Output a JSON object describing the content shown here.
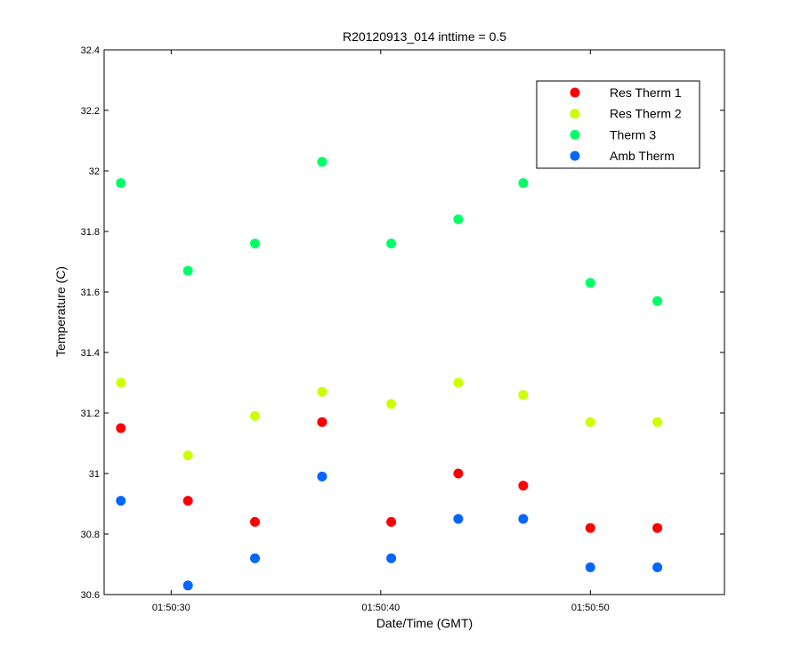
{
  "chart_data": {
    "type": "scatter",
    "title": "R20120913_014 inttime = 0.5",
    "xlabel": "Date/Time (GMT)",
    "ylabel": "Temperature (C)",
    "x_unit": "time (GMT)",
    "xlim": [
      "01:50:26.8",
      "01:50:56.4"
    ],
    "ylim": [
      30.6,
      32.4
    ],
    "x_ticks": [
      "01:50:30",
      "01:50:40",
      "01:50:50"
    ],
    "y_ticks": [
      "30.6",
      "30.8",
      "31",
      "31.2",
      "31.4",
      "31.6",
      "31.8",
      "32",
      "32.2",
      "32.4"
    ],
    "grid": false,
    "legend_position": "top-right",
    "x": [
      "01:50:27.6",
      "01:50:30.8",
      "01:50:34.0",
      "01:50:37.2",
      "01:50:40.5",
      "01:50:43.7",
      "01:50:46.8",
      "01:50:50.0",
      "01:50:53.2"
    ],
    "series": [
      {
        "name": "Res Therm 1",
        "color": "#ff0000",
        "values": [
          31.15,
          30.91,
          30.84,
          31.17,
          30.84,
          31.0,
          30.96,
          30.82,
          30.82
        ]
      },
      {
        "name": "Res Therm 2",
        "color": "#ccff00",
        "values": [
          31.3,
          31.06,
          31.19,
          31.27,
          31.23,
          31.3,
          31.26,
          31.17,
          31.17
        ]
      },
      {
        "name": "Therm 3",
        "color": "#00ff66",
        "values": [
          31.96,
          31.67,
          31.76,
          32.03,
          31.76,
          31.84,
          31.96,
          31.63,
          31.57
        ]
      },
      {
        "name": "Amb Therm",
        "color": "#0066ff",
        "values": [
          30.91,
          30.63,
          30.72,
          30.99,
          30.72,
          30.85,
          30.85,
          30.69,
          30.69
        ]
      }
    ]
  }
}
